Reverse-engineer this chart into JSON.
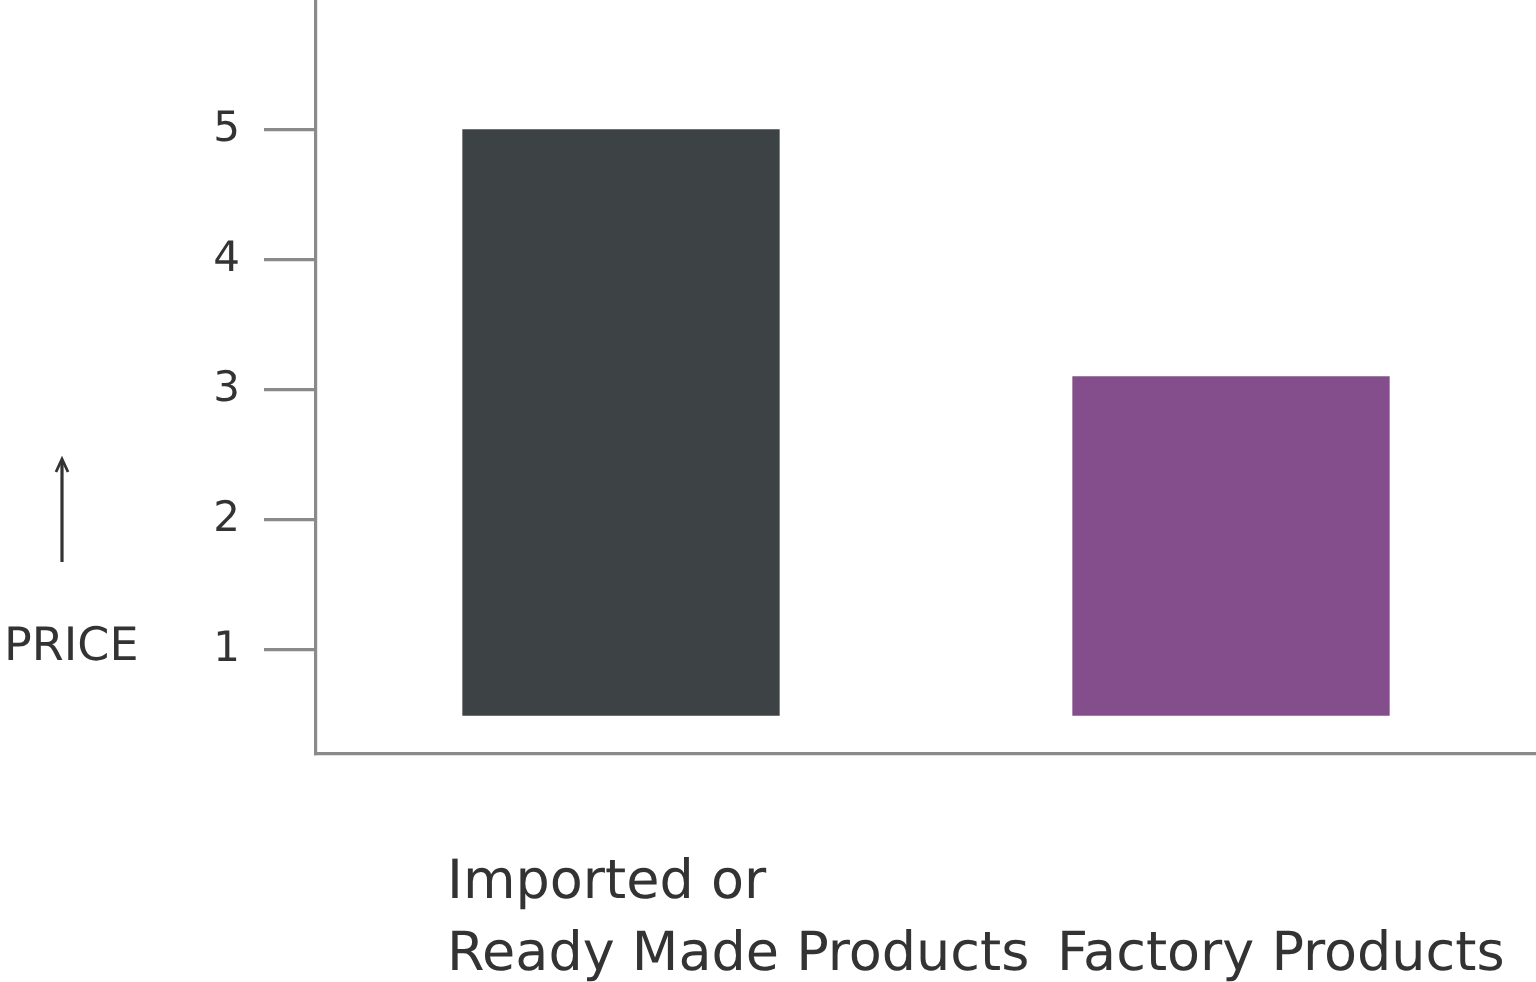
{
  "chart_data": {
    "type": "bar",
    "ylabel": "PRICE",
    "categories": [
      "Imported or Ready Made Products",
      "Factory Products"
    ],
    "values": [
      4.5,
      2.6
    ],
    "base": [
      0.5,
      0.5
    ],
    "colors": [
      "#3d4244",
      "#844e8c"
    ],
    "ylim": [
      0.2,
      6
    ],
    "yticks": [
      1,
      2,
      3,
      4,
      5
    ]
  }
}
